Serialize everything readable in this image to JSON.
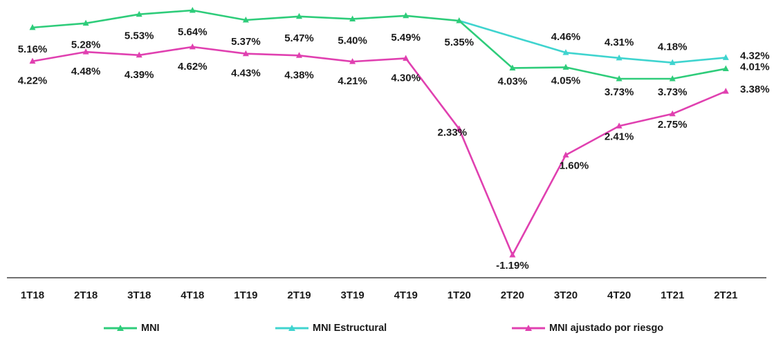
{
  "chart_data": {
    "type": "line",
    "categories": [
      "1T18",
      "2T18",
      "3T18",
      "4T18",
      "1T19",
      "2T19",
      "3T19",
      "4T19",
      "1T20",
      "2T20",
      "3T20",
      "4T20",
      "1T21",
      "2T21"
    ],
    "series": [
      {
        "name": "MNI",
        "color": "#2ecc7a",
        "values": [
          5.16,
          5.28,
          5.53,
          5.64,
          5.37,
          5.47,
          5.4,
          5.49,
          5.35,
          4.03,
          4.05,
          3.73,
          3.73,
          4.01
        ],
        "labels": [
          "5.16%",
          "5.28%",
          "5.53%",
          "5.64%",
          "5.37%",
          "5.47%",
          "5.40%",
          "5.49%",
          "5.35%",
          "4.03%",
          "4.05%",
          "3.73%",
          "3.73%",
          "4.01%"
        ]
      },
      {
        "name": "MNI Estructural",
        "color": "#3fd4cf",
        "values": [
          null,
          null,
          null,
          null,
          null,
          null,
          null,
          null,
          5.35,
          null,
          4.46,
          4.31,
          4.18,
          4.32
        ],
        "labels": [
          null,
          null,
          null,
          null,
          null,
          null,
          null,
          null,
          null,
          null,
          "4.46%",
          "4.31%",
          "4.18%",
          "4.32%"
        ]
      },
      {
        "name": "MNI ajustado por riesgo",
        "color": "#e040b0",
        "values": [
          4.22,
          4.48,
          4.39,
          4.62,
          4.43,
          4.38,
          4.21,
          4.3,
          2.33,
          -1.19,
          1.6,
          2.41,
          2.75,
          3.38
        ],
        "labels": [
          "4.22%",
          "4.48%",
          "4.39%",
          "4.62%",
          "4.43%",
          "4.38%",
          "4.21%",
          "4.30%",
          "2.33%",
          "-1.19%",
          "1.60%",
          "2.41%",
          "2.75%",
          "3.38%"
        ]
      }
    ],
    "legend_position": "bottom",
    "grid": false,
    "marker": "triangle"
  }
}
